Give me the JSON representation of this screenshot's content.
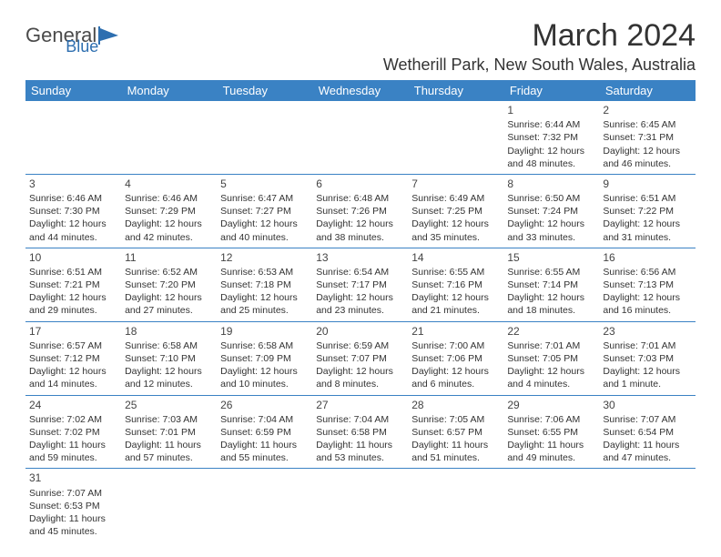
{
  "logo": {
    "text1": "General",
    "text2": "Blue"
  },
  "title": "March 2024",
  "location": "Wetherill Park, New South Wales, Australia",
  "weekdays": [
    "Sunday",
    "Monday",
    "Tuesday",
    "Wednesday",
    "Thursday",
    "Friday",
    "Saturday"
  ],
  "colors": {
    "header_bg": "#3a82c4",
    "header_text": "#ffffff",
    "border": "#3a82c4",
    "text": "#333333"
  },
  "weeks": [
    [
      null,
      null,
      null,
      null,
      null,
      {
        "n": "1",
        "sr": "Sunrise: 6:44 AM",
        "ss": "Sunset: 7:32 PM",
        "d1": "Daylight: 12 hours",
        "d2": "and 48 minutes."
      },
      {
        "n": "2",
        "sr": "Sunrise: 6:45 AM",
        "ss": "Sunset: 7:31 PM",
        "d1": "Daylight: 12 hours",
        "d2": "and 46 minutes."
      }
    ],
    [
      {
        "n": "3",
        "sr": "Sunrise: 6:46 AM",
        "ss": "Sunset: 7:30 PM",
        "d1": "Daylight: 12 hours",
        "d2": "and 44 minutes."
      },
      {
        "n": "4",
        "sr": "Sunrise: 6:46 AM",
        "ss": "Sunset: 7:29 PM",
        "d1": "Daylight: 12 hours",
        "d2": "and 42 minutes."
      },
      {
        "n": "5",
        "sr": "Sunrise: 6:47 AM",
        "ss": "Sunset: 7:27 PM",
        "d1": "Daylight: 12 hours",
        "d2": "and 40 minutes."
      },
      {
        "n": "6",
        "sr": "Sunrise: 6:48 AM",
        "ss": "Sunset: 7:26 PM",
        "d1": "Daylight: 12 hours",
        "d2": "and 38 minutes."
      },
      {
        "n": "7",
        "sr": "Sunrise: 6:49 AM",
        "ss": "Sunset: 7:25 PM",
        "d1": "Daylight: 12 hours",
        "d2": "and 35 minutes."
      },
      {
        "n": "8",
        "sr": "Sunrise: 6:50 AM",
        "ss": "Sunset: 7:24 PM",
        "d1": "Daylight: 12 hours",
        "d2": "and 33 minutes."
      },
      {
        "n": "9",
        "sr": "Sunrise: 6:51 AM",
        "ss": "Sunset: 7:22 PM",
        "d1": "Daylight: 12 hours",
        "d2": "and 31 minutes."
      }
    ],
    [
      {
        "n": "10",
        "sr": "Sunrise: 6:51 AM",
        "ss": "Sunset: 7:21 PM",
        "d1": "Daylight: 12 hours",
        "d2": "and 29 minutes."
      },
      {
        "n": "11",
        "sr": "Sunrise: 6:52 AM",
        "ss": "Sunset: 7:20 PM",
        "d1": "Daylight: 12 hours",
        "d2": "and 27 minutes."
      },
      {
        "n": "12",
        "sr": "Sunrise: 6:53 AM",
        "ss": "Sunset: 7:18 PM",
        "d1": "Daylight: 12 hours",
        "d2": "and 25 minutes."
      },
      {
        "n": "13",
        "sr": "Sunrise: 6:54 AM",
        "ss": "Sunset: 7:17 PM",
        "d1": "Daylight: 12 hours",
        "d2": "and 23 minutes."
      },
      {
        "n": "14",
        "sr": "Sunrise: 6:55 AM",
        "ss": "Sunset: 7:16 PM",
        "d1": "Daylight: 12 hours",
        "d2": "and 21 minutes."
      },
      {
        "n": "15",
        "sr": "Sunrise: 6:55 AM",
        "ss": "Sunset: 7:14 PM",
        "d1": "Daylight: 12 hours",
        "d2": "and 18 minutes."
      },
      {
        "n": "16",
        "sr": "Sunrise: 6:56 AM",
        "ss": "Sunset: 7:13 PM",
        "d1": "Daylight: 12 hours",
        "d2": "and 16 minutes."
      }
    ],
    [
      {
        "n": "17",
        "sr": "Sunrise: 6:57 AM",
        "ss": "Sunset: 7:12 PM",
        "d1": "Daylight: 12 hours",
        "d2": "and 14 minutes."
      },
      {
        "n": "18",
        "sr": "Sunrise: 6:58 AM",
        "ss": "Sunset: 7:10 PM",
        "d1": "Daylight: 12 hours",
        "d2": "and 12 minutes."
      },
      {
        "n": "19",
        "sr": "Sunrise: 6:58 AM",
        "ss": "Sunset: 7:09 PM",
        "d1": "Daylight: 12 hours",
        "d2": "and 10 minutes."
      },
      {
        "n": "20",
        "sr": "Sunrise: 6:59 AM",
        "ss": "Sunset: 7:07 PM",
        "d1": "Daylight: 12 hours",
        "d2": "and 8 minutes."
      },
      {
        "n": "21",
        "sr": "Sunrise: 7:00 AM",
        "ss": "Sunset: 7:06 PM",
        "d1": "Daylight: 12 hours",
        "d2": "and 6 minutes."
      },
      {
        "n": "22",
        "sr": "Sunrise: 7:01 AM",
        "ss": "Sunset: 7:05 PM",
        "d1": "Daylight: 12 hours",
        "d2": "and 4 minutes."
      },
      {
        "n": "23",
        "sr": "Sunrise: 7:01 AM",
        "ss": "Sunset: 7:03 PM",
        "d1": "Daylight: 12 hours",
        "d2": "and 1 minute."
      }
    ],
    [
      {
        "n": "24",
        "sr": "Sunrise: 7:02 AM",
        "ss": "Sunset: 7:02 PM",
        "d1": "Daylight: 11 hours",
        "d2": "and 59 minutes."
      },
      {
        "n": "25",
        "sr": "Sunrise: 7:03 AM",
        "ss": "Sunset: 7:01 PM",
        "d1": "Daylight: 11 hours",
        "d2": "and 57 minutes."
      },
      {
        "n": "26",
        "sr": "Sunrise: 7:04 AM",
        "ss": "Sunset: 6:59 PM",
        "d1": "Daylight: 11 hours",
        "d2": "and 55 minutes."
      },
      {
        "n": "27",
        "sr": "Sunrise: 7:04 AM",
        "ss": "Sunset: 6:58 PM",
        "d1": "Daylight: 11 hours",
        "d2": "and 53 minutes."
      },
      {
        "n": "28",
        "sr": "Sunrise: 7:05 AM",
        "ss": "Sunset: 6:57 PM",
        "d1": "Daylight: 11 hours",
        "d2": "and 51 minutes."
      },
      {
        "n": "29",
        "sr": "Sunrise: 7:06 AM",
        "ss": "Sunset: 6:55 PM",
        "d1": "Daylight: 11 hours",
        "d2": "and 49 minutes."
      },
      {
        "n": "30",
        "sr": "Sunrise: 7:07 AM",
        "ss": "Sunset: 6:54 PM",
        "d1": "Daylight: 11 hours",
        "d2": "and 47 minutes."
      }
    ],
    [
      {
        "n": "31",
        "sr": "Sunrise: 7:07 AM",
        "ss": "Sunset: 6:53 PM",
        "d1": "Daylight: 11 hours",
        "d2": "and 45 minutes."
      },
      null,
      null,
      null,
      null,
      null,
      null
    ]
  ]
}
